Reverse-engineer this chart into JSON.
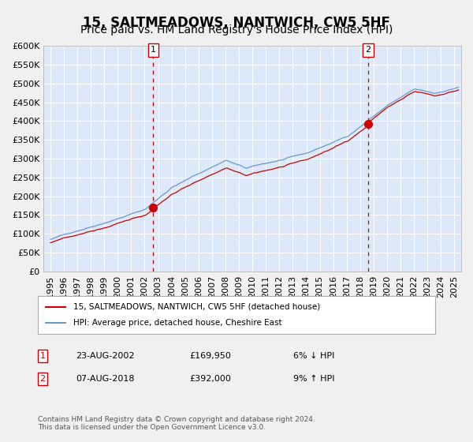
{
  "title": "15, SALTMEADOWS, NANTWICH, CW5 5HF",
  "subtitle": "Price paid vs. HM Land Registry's House Price Index (HPI)",
  "xlabel": "",
  "ylabel": "",
  "ylim": [
    0,
    600000
  ],
  "yticks": [
    0,
    50000,
    100000,
    150000,
    200000,
    250000,
    300000,
    350000,
    400000,
    450000,
    500000,
    550000,
    600000
  ],
  "background_color": "#dde8f8",
  "plot_bg_color": "#dde8f8",
  "grid_color": "#ffffff",
  "hpi_color": "#6699cc",
  "price_color": "#cc0000",
  "sale1_date": "23-AUG-2002",
  "sale1_price": 169950,
  "sale1_hpi_pct": "6% ↓ HPI",
  "sale1_year": 2002.64,
  "sale2_date": "07-AUG-2018",
  "sale2_price": 392000,
  "sale2_hpi_pct": "9% ↑ HPI",
  "sale2_year": 2018.6,
  "legend_line1": "15, SALTMEADOWS, NANTWICH, CW5 5HF (detached house)",
  "legend_line2": "HPI: Average price, detached house, Cheshire East",
  "footnote": "Contains HM Land Registry data © Crown copyright and database right 2024.\nThis data is licensed under the Open Government Licence v3.0.",
  "title_fontsize": 12,
  "subtitle_fontsize": 10,
  "tick_fontsize": 8
}
